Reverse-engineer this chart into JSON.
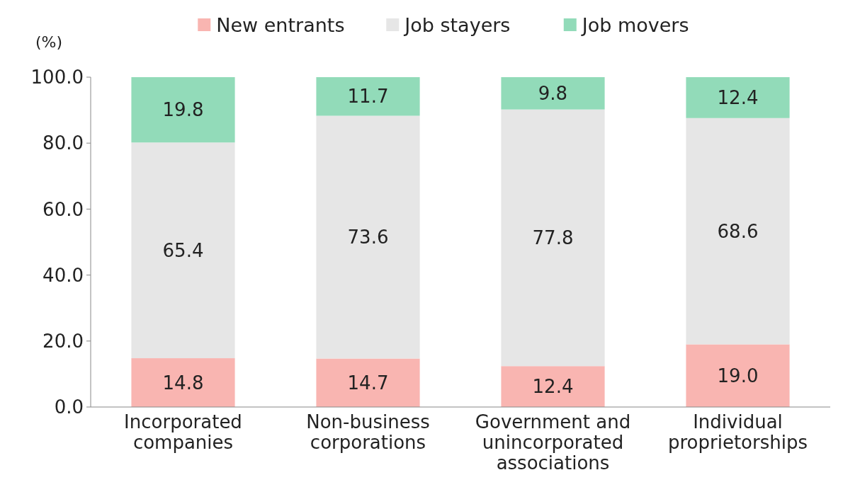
{
  "chart_data": {
    "type": "bar",
    "stacked": true,
    "ylabel": "(%)",
    "legend": "top",
    "grid": false,
    "categories": [
      "Incorporated companies",
      "Non-business corporations",
      "Government and unincorporated associations",
      "Individual proprietorships"
    ],
    "series": [
      {
        "name": "New entrants",
        "color": "#f9b5b1",
        "values": [
          14.8,
          14.7,
          12.4,
          19.0
        ],
        "value_labels": [
          "14.8",
          "14.7",
          "12.4",
          "19.0"
        ]
      },
      {
        "name": "Job stayers",
        "color": "#e6e6e6",
        "values": [
          65.4,
          73.6,
          77.8,
          68.6
        ],
        "value_labels": [
          "65.4",
          "73.6",
          "77.8",
          "68.6"
        ]
      },
      {
        "name": "Job movers",
        "color": "#92dbb9",
        "values": [
          19.8,
          11.7,
          9.8,
          12.4
        ],
        "value_labels": [
          "19.8",
          "11.7",
          "9.8",
          "12.4"
        ]
      }
    ],
    "ylim": [
      0,
      100
    ],
    "yticks": [
      {
        "value": 0,
        "label": "0.0"
      },
      {
        "value": 20,
        "label": "20.0"
      },
      {
        "value": 40,
        "label": "40.0"
      },
      {
        "value": 60,
        "label": "60.0"
      },
      {
        "value": 80,
        "label": "80.0"
      },
      {
        "value": 100,
        "label": "100.0"
      }
    ]
  }
}
